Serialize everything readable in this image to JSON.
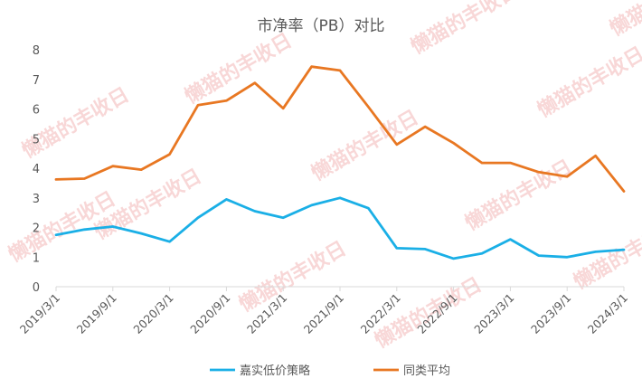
{
  "chart_data": {
    "type": "line",
    "title": "市净率（PB）对比",
    "xlabel": "",
    "ylabel": "",
    "ylim": [
      0,
      8
    ],
    "yticks": [
      0,
      1,
      2,
      3,
      4,
      5,
      6,
      7,
      8
    ],
    "x_tick_labels": [
      "2019/3/1",
      "2019/9/1",
      "2020/3/1",
      "2020/9/1",
      "2021/3/1",
      "2021/9/1",
      "2022/3/1",
      "2022/9/1",
      "2023/3/1",
      "2023/9/1",
      "2024/3/1"
    ],
    "x": [
      "2019/3/1",
      "2019/6/1",
      "2019/9/1",
      "2019/12/1",
      "2020/3/1",
      "2020/6/1",
      "2020/9/1",
      "2020/12/1",
      "2021/3/1",
      "2021/6/1",
      "2021/9/1",
      "2021/12/1",
      "2022/3/1",
      "2022/6/1",
      "2022/9/1",
      "2022/12/1",
      "2023/3/1",
      "2023/6/1",
      "2023/9/1",
      "2023/12/1",
      "2024/3/1"
    ],
    "series": [
      {
        "name": "嘉实低价策略",
        "color": "#1aafe6",
        "values": [
          1.75,
          1.93,
          2.03,
          1.8,
          1.52,
          2.33,
          2.95,
          2.55,
          2.33,
          2.75,
          3.0,
          2.65,
          1.3,
          1.27,
          0.95,
          1.12,
          1.6,
          1.05,
          1.0,
          1.18,
          1.25
        ]
      },
      {
        "name": "同类平均",
        "color": "#e87722",
        "values": [
          3.62,
          3.65,
          4.07,
          3.95,
          4.47,
          6.13,
          6.28,
          6.88,
          6.02,
          7.43,
          7.3,
          6.07,
          4.8,
          5.4,
          4.85,
          4.18,
          4.18,
          3.87,
          3.72,
          4.42,
          3.22
        ]
      }
    ],
    "grid": false,
    "legend_position": "bottom-center",
    "watermark": "懒猫的丰收日"
  }
}
